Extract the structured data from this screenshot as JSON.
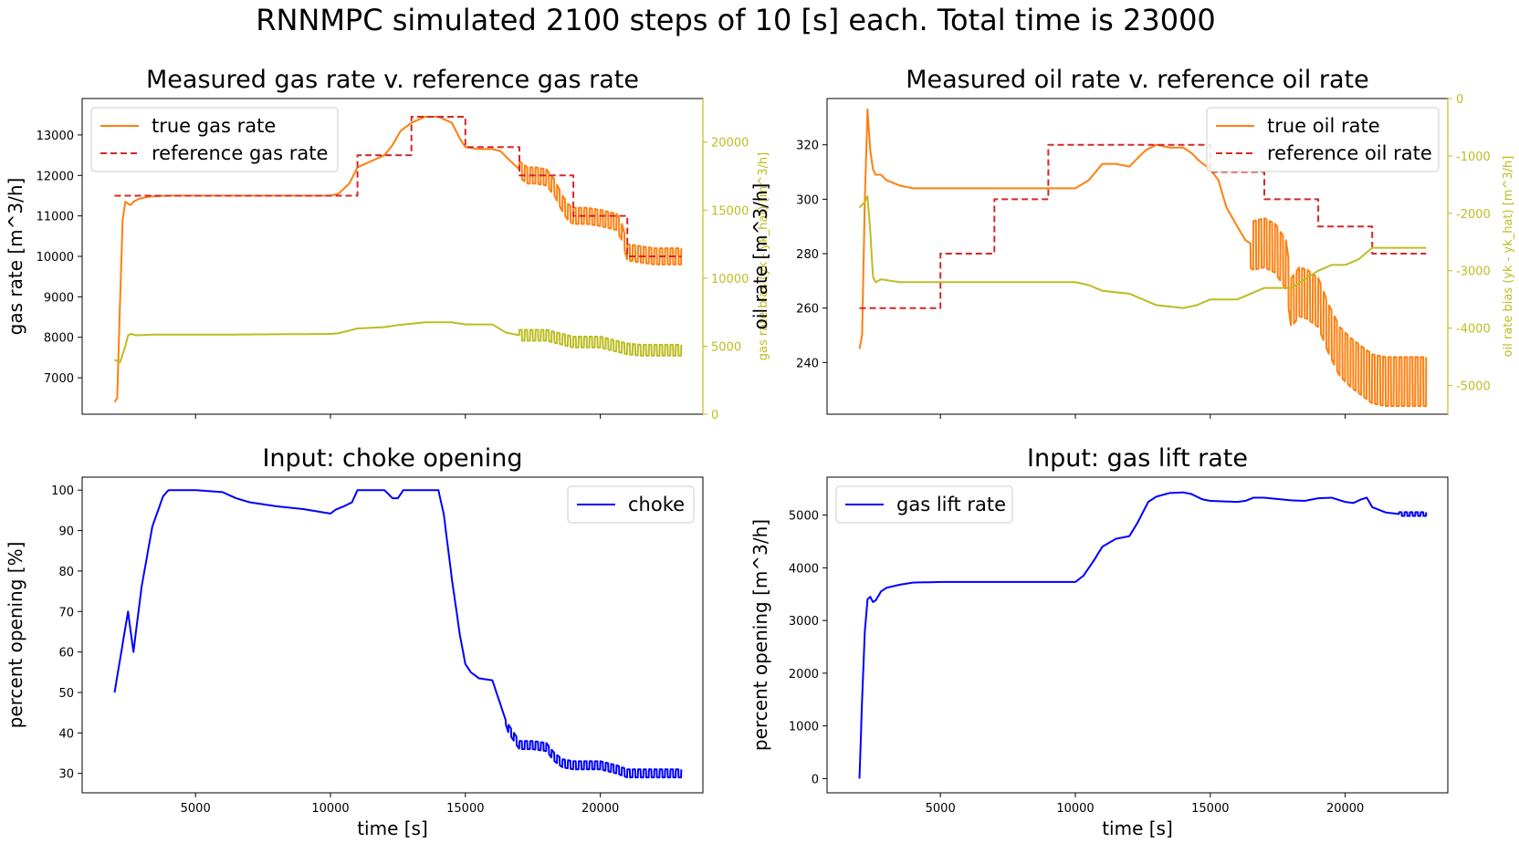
{
  "suptitle": "RNNMPC simulated 2100 steps of 10 [s] each. Total time is 23000",
  "colors": {
    "orange": "#ff7f0e",
    "red": "#d62728",
    "olive": "#bcbd22",
    "blue": "#0000ff"
  },
  "chart_data": [
    {
      "id": "gas",
      "type": "line",
      "title": "Measured gas rate v. reference gas rate",
      "xlabel": "",
      "ylabel": "gas rate [m^3/h]",
      "ylabel_right": "gas rate bias (yk - yk_hat) [m^3/h]",
      "xlim": [
        800,
        23800
      ],
      "ylim": [
        6100,
        13900
      ],
      "yticks": [
        7000,
        8000,
        9000,
        10000,
        11000,
        12000,
        13000
      ],
      "ylim_right": [
        0,
        23200
      ],
      "yticks_right": [
        0,
        5000,
        10000,
        15000,
        20000
      ],
      "xticks": [
        5000,
        10000,
        15000,
        20000
      ],
      "show_xtick_labels": false,
      "legend_position": "upper-left",
      "series": [
        {
          "name": "true gas rate",
          "axis": "left",
          "style": "solid",
          "color": "orange",
          "osc_start": 17000,
          "osc_amp": 200,
          "x": [
            2000,
            2100,
            2200,
            2300,
            2400,
            2500,
            2600,
            2700,
            2900,
            3300,
            4000,
            6000,
            8000,
            10000,
            10300,
            10700,
            11000,
            12000,
            12300,
            12600,
            13000,
            13500,
            14000,
            14500,
            14800,
            15000,
            15500,
            16000,
            16300,
            16600,
            17000,
            17300,
            17600,
            18000,
            18300,
            18600,
            18800,
            19000,
            19500,
            20000,
            20300,
            20600,
            20800,
            21000,
            21500,
            22000,
            22500,
            23000
          ],
          "y": [
            6400,
            6500,
            8800,
            10900,
            11350,
            11300,
            11270,
            11350,
            11420,
            11480,
            11500,
            11500,
            11500,
            11500,
            11550,
            11800,
            12200,
            12500,
            12750,
            13100,
            13300,
            13450,
            13450,
            13300,
            12900,
            12700,
            12650,
            12650,
            12600,
            12400,
            12150,
            12000,
            12000,
            11950,
            11700,
            11300,
            11100,
            11000,
            11000,
            10950,
            10900,
            10850,
            10600,
            10100,
            10050,
            10000,
            10000,
            10000
          ]
        },
        {
          "name": "reference gas rate",
          "axis": "left",
          "style": "dashed",
          "color": "red",
          "x": [
            2000,
            11000,
            11000,
            13000,
            13000,
            15000,
            15000,
            17000,
            17000,
            19000,
            19000,
            21000,
            21000,
            23000
          ],
          "y": [
            11500,
            11500,
            12500,
            12500,
            13450,
            13450,
            12700,
            12700,
            12000,
            12000,
            11000,
            11000,
            10000,
            10000
          ]
        },
        {
          "name": "",
          "axis": "right",
          "style": "solid",
          "color": "olive",
          "osc_start": 17000,
          "osc_amp": 400,
          "x": [
            2000,
            2200,
            2400,
            2500,
            2600,
            2800,
            3500,
            6000,
            10000,
            10300,
            11000,
            12000,
            12500,
            13500,
            14500,
            15000,
            16000,
            16500,
            17000,
            18000,
            19000,
            20000,
            21000,
            21500,
            22000,
            23000
          ],
          "y": [
            4000,
            3800,
            5000,
            5800,
            5900,
            5800,
            5850,
            5850,
            5900,
            5950,
            6300,
            6400,
            6550,
            6750,
            6750,
            6600,
            6600,
            6000,
            5800,
            5800,
            5300,
            5300,
            4800,
            4700,
            4700,
            4700
          ]
        }
      ]
    },
    {
      "id": "oil",
      "type": "line",
      "title": "Measured oil rate v. reference oil rate",
      "xlabel": "",
      "ylabel": "oil rate [m^3/h]",
      "ylabel_right": "oil rate bias (yk - yk_hat) [m^3/h]",
      "xlim": [
        800,
        23800
      ],
      "ylim": [
        221,
        337
      ],
      "yticks": [
        240,
        260,
        280,
        300,
        320
      ],
      "ylim_right": [
        -5500,
        0
      ],
      "yticks_right": [
        -5000,
        -4000,
        -3000,
        -2000,
        -1000,
        0
      ],
      "xticks": [
        5000,
        10000,
        15000,
        20000
      ],
      "show_xtick_labels": false,
      "legend_position": "upper-right",
      "series": [
        {
          "name": "true oil rate",
          "axis": "left",
          "style": "solid",
          "color": "orange",
          "osc_start": 16500,
          "osc_amp": 9,
          "x": [
            2000,
            2100,
            2200,
            2300,
            2400,
            2500,
            2600,
            2800,
            3000,
            3500,
            4000,
            6000,
            8000,
            10000,
            10500,
            11000,
            11500,
            12000,
            12300,
            12600,
            13000,
            13500,
            14000,
            14300,
            14600,
            15000,
            15300,
            15600,
            16000,
            16300,
            16600,
            17000,
            17400,
            17800,
            18000,
            18300,
            18600,
            19000,
            19400,
            19800,
            20200,
            20600,
            21000,
            21500,
            22000,
            22500,
            23000
          ],
          "y": [
            245,
            250,
            300,
            333,
            318,
            311,
            309,
            309,
            307,
            305,
            304,
            304,
            304,
            304,
            307,
            313,
            313,
            312,
            315,
            318,
            320,
            319,
            319,
            317,
            314,
            311,
            307,
            297,
            290,
            285,
            283,
            284,
            282,
            276,
            262,
            266,
            265,
            262,
            252,
            244,
            240,
            237,
            234,
            233,
            233,
            233,
            233
          ]
        },
        {
          "name": "reference oil rate",
          "axis": "left",
          "style": "dashed",
          "color": "red",
          "x": [
            2000,
            5000,
            5000,
            7000,
            7000,
            9000,
            9000,
            15000,
            15000,
            17000,
            17000,
            19000,
            19000,
            21000,
            21000,
            23000
          ],
          "y": [
            260,
            260,
            280,
            280,
            300,
            300,
            320,
            320,
            310,
            310,
            300,
            300,
            290,
            290,
            280,
            280
          ]
        },
        {
          "name": "",
          "axis": "right",
          "style": "solid",
          "color": "olive",
          "osc_start": 30000,
          "osc_amp": 0,
          "x": [
            2000,
            2200,
            2300,
            2400,
            2500,
            2600,
            2800,
            3500,
            6000,
            10000,
            10500,
            11000,
            12000,
            12500,
            13000,
            14000,
            14500,
            15000,
            16000,
            16500,
            17000,
            18000,
            18500,
            19000,
            19500,
            20000,
            20500,
            21000,
            21500,
            22000,
            23000
          ],
          "y": [
            -1900,
            -1800,
            -1700,
            -2300,
            -3100,
            -3200,
            -3150,
            -3200,
            -3200,
            -3200,
            -3250,
            -3350,
            -3400,
            -3500,
            -3600,
            -3650,
            -3600,
            -3500,
            -3500,
            -3400,
            -3300,
            -3300,
            -3150,
            -3000,
            -2900,
            -2900,
            -2800,
            -2600,
            -2600,
            -2600,
            -2600
          ]
        }
      ]
    },
    {
      "id": "choke",
      "type": "line",
      "title": "Input: choke opening",
      "xlabel": "time [s]",
      "ylabel": "percent opening [%]",
      "xlim": [
        800,
        23800
      ],
      "ylim": [
        25.2,
        103.2
      ],
      "yticks": [
        30,
        40,
        50,
        60,
        70,
        80,
        90,
        100
      ],
      "xticks": [
        5000,
        10000,
        15000,
        20000
      ],
      "show_xtick_labels": true,
      "legend_position": "upper-right",
      "series": [
        {
          "name": "choke",
          "axis": "left",
          "style": "solid",
          "color": "blue",
          "osc_start": 16500,
          "osc_amp": 1.0,
          "x": [
            2000,
            2200,
            2500,
            2700,
            3000,
            3400,
            3800,
            4000,
            5000,
            6000,
            6500,
            7000,
            8000,
            9000,
            10000,
            10200,
            10500,
            10800,
            11000,
            11500,
            12000,
            12300,
            12500,
            12700,
            13000,
            13500,
            14000,
            14200,
            14500,
            14800,
            15000,
            15200,
            15500,
            16000,
            16300,
            16600,
            17000,
            17500,
            18000,
            18300,
            18600,
            19000,
            19500,
            20000,
            20300,
            20600,
            21000,
            21500,
            22000,
            23000
          ],
          "y": [
            50,
            58,
            70,
            60,
            76,
            91,
            98.5,
            100,
            100,
            99.5,
            98,
            97,
            96,
            95.3,
            94.2,
            95.2,
            96,
            97,
            100,
            100,
            100,
            98,
            98,
            100,
            100,
            100,
            100,
            94,
            78,
            64,
            57,
            55,
            53.5,
            53,
            47,
            41,
            37,
            37,
            36.5,
            34,
            32.5,
            32,
            32,
            32,
            31.5,
            31,
            30,
            30,
            30,
            30
          ]
        }
      ]
    },
    {
      "id": "gaslift",
      "type": "line",
      "title": "Input: gas lift rate",
      "xlabel": "time [s]",
      "ylabel": "percent opening [m^3/h]",
      "xlim": [
        800,
        23800
      ],
      "ylim": [
        -270,
        5720
      ],
      "yticks": [
        0,
        1000,
        2000,
        3000,
        4000,
        5000
      ],
      "xticks": [
        5000,
        10000,
        15000,
        20000
      ],
      "show_xtick_labels": true,
      "legend_position": "upper-left",
      "series": [
        {
          "name": "gas lift rate",
          "axis": "left",
          "style": "solid",
          "color": "blue",
          "osc_start": 22000,
          "osc_amp": 35,
          "x": [
            2000,
            2100,
            2200,
            2300,
            2400,
            2500,
            2600,
            2800,
            3000,
            3500,
            4000,
            5000,
            6000,
            8000,
            10000,
            10300,
            10700,
            11000,
            11500,
            12000,
            12300,
            12700,
            13000,
            13500,
            14000,
            14300,
            14700,
            15000,
            16000,
            16300,
            16600,
            17000,
            18000,
            18500,
            19000,
            19500,
            20000,
            20300,
            20600,
            20800,
            21000,
            21500,
            22000,
            23000
          ],
          "y": [
            0,
            1500,
            2800,
            3400,
            3450,
            3350,
            3380,
            3550,
            3620,
            3680,
            3720,
            3730,
            3730,
            3730,
            3730,
            3850,
            4150,
            4400,
            4550,
            4600,
            4850,
            5250,
            5350,
            5420,
            5430,
            5400,
            5300,
            5270,
            5250,
            5270,
            5330,
            5330,
            5280,
            5270,
            5320,
            5330,
            5250,
            5230,
            5300,
            5330,
            5150,
            5050,
            5020,
            5020
          ]
        }
      ]
    }
  ]
}
